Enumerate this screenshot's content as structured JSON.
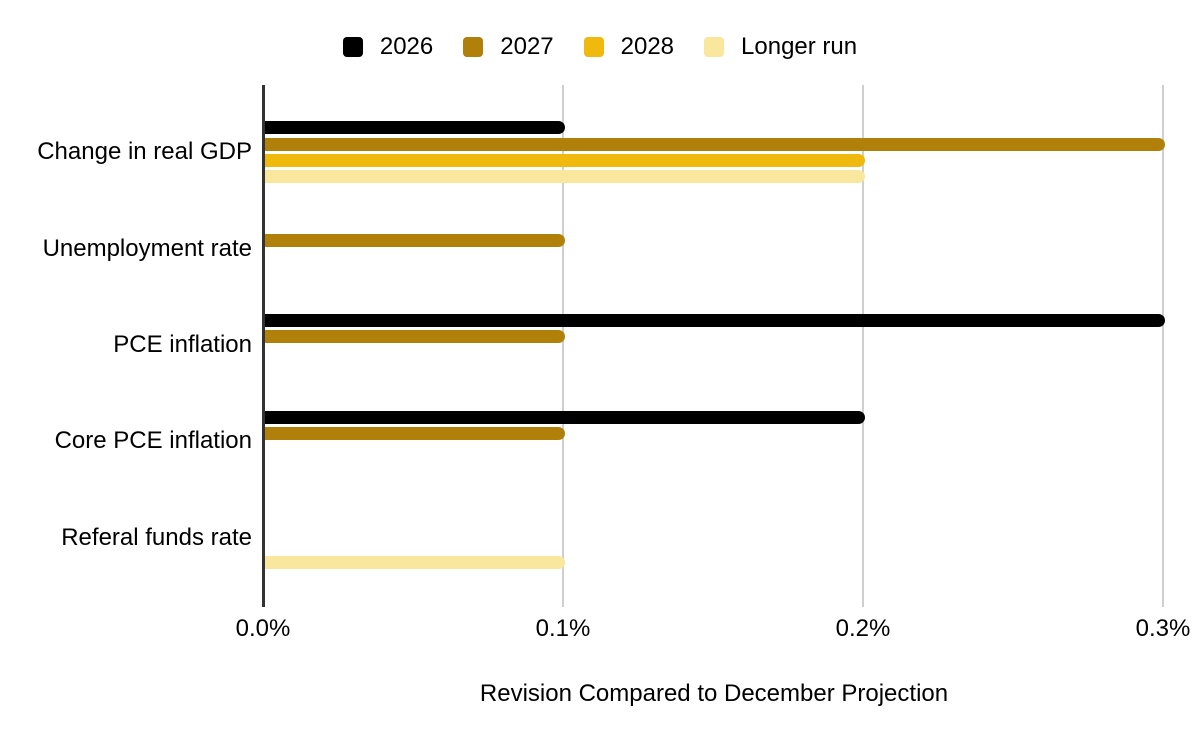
{
  "chart_data": {
    "type": "bar",
    "orientation": "horizontal",
    "title": "",
    "xlabel": "Revision Compared to December Projection",
    "ylabel": "",
    "categories": [
      "Change in real GDP",
      "Unemployment rate",
      "PCE inflation",
      "Core PCE inflation",
      "Referal funds rate"
    ],
    "series": [
      {
        "name": "2026",
        "color": "#000000",
        "values": [
          0.1,
          0,
          0.3,
          0.2,
          0
        ]
      },
      {
        "name": "2027",
        "color": "#B0800B",
        "values": [
          0.3,
          0.1,
          0.1,
          0.1,
          0
        ]
      },
      {
        "name": "2028",
        "color": "#F0B90E",
        "values": [
          0.2,
          0,
          0,
          0,
          0
        ]
      },
      {
        "name": "Longer run",
        "color": "#FAE79E",
        "values": [
          0.2,
          0,
          0,
          0,
          0.1
        ]
      }
    ],
    "x_ticks": [
      {
        "label": "0.0%",
        "value": 0.0
      },
      {
        "label": "0.1%",
        "value": 0.1
      },
      {
        "label": "0.2%",
        "value": 0.2
      },
      {
        "label": "0.3%",
        "value": 0.3
      }
    ],
    "xlim": [
      0,
      0.31
    ],
    "grid": "vertical-gridlines",
    "legend_position": "top-center",
    "axis_color": "#333333",
    "gridline_color": "#cfcfcf"
  }
}
